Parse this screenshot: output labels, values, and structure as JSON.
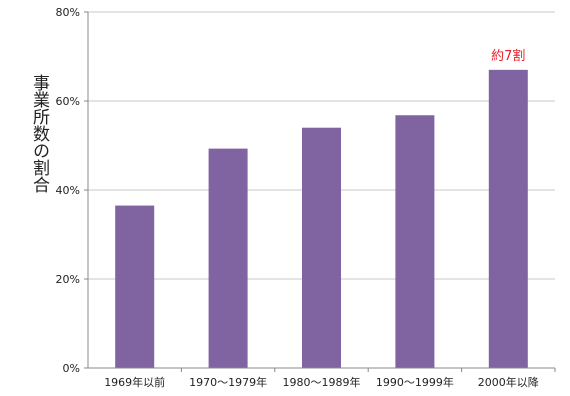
{
  "chart_data": {
    "type": "bar",
    "categories": [
      "1969年以前",
      "1970〜1979年",
      "1980〜1989年",
      "1990〜1999年",
      "2000年以降"
    ],
    "values": [
      36.5,
      49.3,
      54.0,
      56.8,
      67.0
    ],
    "unit": "%",
    "xlabel": "",
    "ylabel": "事業所数の割合",
    "ylim": [
      0,
      80
    ],
    "yticks": [
      0,
      20,
      40,
      60,
      80
    ],
    "ytick_labels": [
      "0%",
      "20%",
      "40%",
      "60%",
      "80%"
    ],
    "grid": true,
    "annotations": [
      {
        "category_index": 4,
        "text": "約7割",
        "color": "#e8202a"
      }
    ],
    "colors": {
      "bar": "#8064a2",
      "grid": "#c8c8c8",
      "axis": "#888888",
      "text": "#222222"
    }
  }
}
